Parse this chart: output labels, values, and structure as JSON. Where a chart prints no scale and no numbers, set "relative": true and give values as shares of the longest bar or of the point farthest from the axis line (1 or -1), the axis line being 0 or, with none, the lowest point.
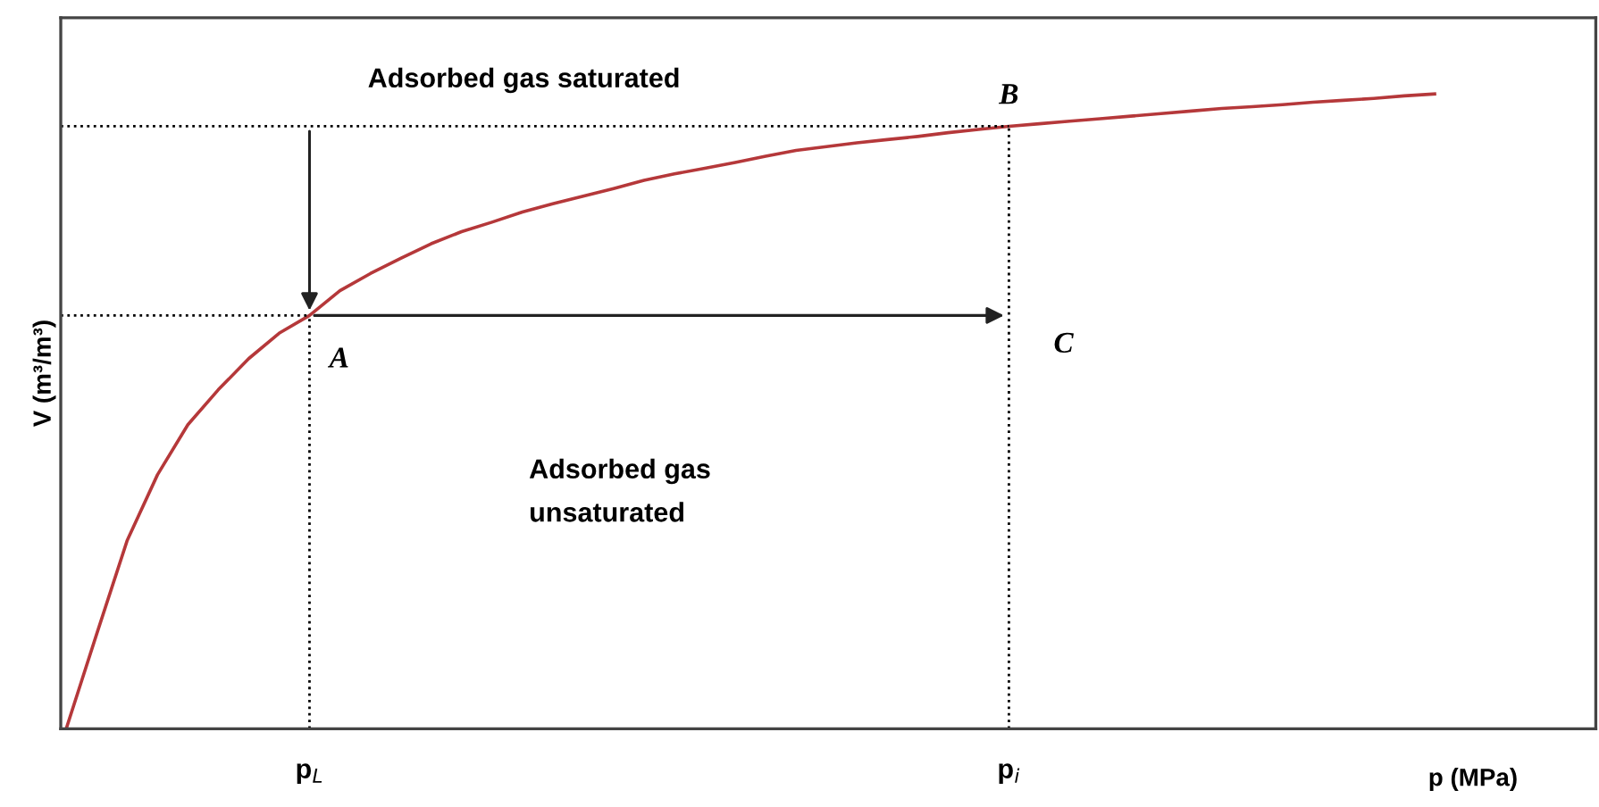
{
  "chart_data": {
    "type": "line",
    "relative": true,
    "xlabel": "p (MPa)",
    "ylabel": "V (m³/m³)",
    "categories": [
      null,
      null,
      null,
      null,
      null,
      null,
      null,
      null,
      "p$_{L}$",
      null,
      null,
      null,
      null,
      null,
      null,
      null,
      null,
      null,
      null,
      null,
      null,
      null,
      null,
      null,
      null,
      null,
      null,
      null,
      null,
      null,
      null,
      "p$_{i}$",
      null,
      null,
      null,
      null,
      null,
      null,
      null,
      null,
      null,
      null,
      null,
      null,
      null,
      null
    ],
    "series": [
      {
        "color": "#b5383a",
        "values": [
          0,
          0.149,
          0.296,
          0.4,
          0.479,
          0.534,
          0.583,
          0.623,
          0.651,
          0.69,
          0.717,
          0.741,
          0.764,
          0.783,
          0.798,
          0.814,
          0.827,
          0.839,
          0.851,
          0.864,
          0.874,
          0.883,
          0.892,
          0.902,
          0.911,
          0.917,
          0.923,
          0.928,
          0.933,
          0.939,
          0.944,
          0.949,
          0.953,
          0.957,
          0.961,
          0.965,
          0.969,
          0.973,
          0.977,
          0.98,
          0.983,
          0.987,
          0.99,
          0.993,
          0.997,
          1
        ]
      }
    ],
    "marker": "none",
    "line_style": "solid",
    "grid": false,
    "ref_lines": [
      {
        "axis": "x",
        "value": "p$_{L}$",
        "line_style": "dotted",
        "color": "#000000"
      },
      {
        "axis": "x",
        "value": "p$_{i}$",
        "line_style": "dotted",
        "color": "#000000"
      },
      {
        "axis": "y",
        "value": 0.651,
        "line_style": "dotted",
        "color": "#000000"
      },
      {
        "axis": "y",
        "value": 0.949,
        "line_style": "dotted",
        "color": "#000000"
      }
    ],
    "annotations": [
      {
        "text": "A",
        "x": "p$_{L}$",
        "y": 0.651
      },
      {
        "text": "B",
        "x": "p$_{i}$",
        "y": 0.949
      },
      {
        "text": "C",
        "x": "p$_{i}$",
        "y": 0.651
      },
      "Adsorbed gas saturated",
      "Adsorbed gas\nunsaturated"
    ]
  }
}
